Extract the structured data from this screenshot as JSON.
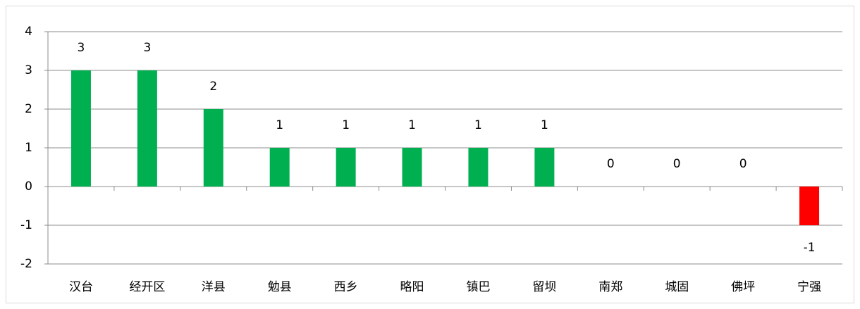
{
  "chart_data": {
    "type": "bar",
    "categories": [
      "汉台",
      "经开区",
      "洋县",
      "勉县",
      "西乡",
      "略阳",
      "镇巴",
      "留坝",
      "南郑",
      "城固",
      "佛坪",
      "宁强"
    ],
    "values": [
      3,
      3,
      2,
      1,
      1,
      1,
      1,
      1,
      0,
      0,
      0,
      -1
    ],
    "colors": [
      "#00b050",
      "#00b050",
      "#00b050",
      "#00b050",
      "#00b050",
      "#00b050",
      "#00b050",
      "#00b050",
      "#00b050",
      "#00b050",
      "#00b050",
      "#ff0000"
    ],
    "ylim": [
      -2,
      4
    ],
    "yticks": [
      -2,
      -1,
      0,
      1,
      2,
      3,
      4
    ],
    "grid": true
  }
}
